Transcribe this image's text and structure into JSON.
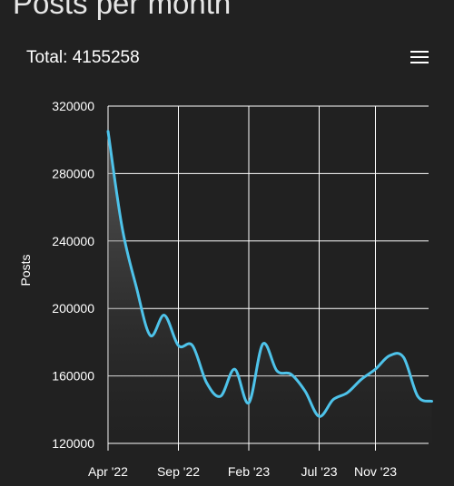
{
  "page": {
    "title": "Posts per month"
  },
  "header": {
    "total_label": "Total: 4155258"
  },
  "menu": {
    "icon": "hamburger-menu-icon"
  },
  "colors": {
    "background": "#212121",
    "line": "#4ec3ea",
    "grid": "#ffffff",
    "text": "#ffffff"
  },
  "chart_data": {
    "type": "area",
    "title": "",
    "xlabel": "",
    "ylabel": "Posts",
    "ylim": [
      120000,
      320000
    ],
    "yticks": [
      120000,
      160000,
      200000,
      240000,
      280000,
      320000
    ],
    "xtick_labels": [
      "Apr '22",
      "Sep '22",
      "Feb '23",
      "Jul '23",
      "Nov '23"
    ],
    "xtick_months": [
      0,
      5,
      10,
      15,
      19
    ],
    "grid": true,
    "legend": "none",
    "series": [
      {
        "months": [
          "Apr '22",
          "May '22",
          "Jun '22",
          "Jul '22",
          "Aug '22",
          "Sep '22",
          "Oct '22",
          "Nov '22",
          "Dec '22",
          "Jan '23",
          "Feb '23",
          "Mar '23",
          "Apr '23",
          "May '23",
          "Jun '23",
          "Jul '23",
          "Aug '23",
          "Sep '23",
          "Oct '23",
          "Nov '23",
          "Dec '23",
          "Jan '24",
          "Feb '24",
          "Mar '24"
        ],
        "values": [
          305000,
          248000,
          213000,
          184000,
          196000,
          178000,
          178000,
          156000,
          148000,
          164000,
          144000,
          179000,
          163000,
          161000,
          151000,
          136000,
          146000,
          150000,
          158000,
          164000,
          172000,
          171000,
          148000,
          145000
        ]
      }
    ]
  }
}
